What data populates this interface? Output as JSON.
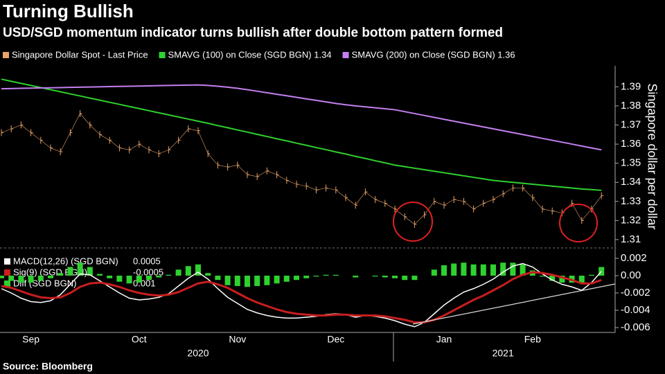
{
  "title": "Turning Bullish",
  "subtitle": "USD/SGD momentum indicator turns bullish after double bottom pattern formed",
  "source": "Source: Bloomberg",
  "chart_data": [
    {
      "type": "line",
      "y_label": "Singapore dollar per dollar",
      "ylim": [
        1.306,
        1.401
      ],
      "yticks": [
        1.31,
        1.32,
        1.33,
        1.34,
        1.35,
        1.36,
        1.37,
        1.38,
        1.39
      ],
      "series": [
        {
          "name": "Singapore Dollar Spot - Last Price",
          "color": "#e8a46a",
          "values": [
            1.366,
            1.368,
            1.37,
            1.366,
            1.362,
            1.358,
            1.356,
            1.366,
            1.376,
            1.37,
            1.365,
            1.362,
            1.358,
            1.357,
            1.36,
            1.357,
            1.355,
            1.357,
            1.362,
            1.368,
            1.367,
            1.355,
            1.349,
            1.348,
            1.349,
            1.344,
            1.343,
            1.346,
            1.344,
            1.341,
            1.339,
            1.338,
            1.336,
            1.337,
            1.336,
            1.332,
            1.328,
            1.335,
            1.331,
            1.329,
            1.326,
            1.322,
            1.318,
            1.323,
            1.33,
            1.328,
            1.331,
            1.33,
            1.326,
            1.329,
            1.331,
            1.334,
            1.337,
            1.337,
            1.332,
            1.326,
            1.325,
            1.324,
            1.329,
            1.32,
            1.326,
            1.333
          ]
        },
        {
          "name": "SMAVG (100)  on Close (SGD BGN) 1.34",
          "color": "#2fd12f",
          "values": [
            1.394,
            1.3929,
            1.3918,
            1.3907,
            1.3896,
            1.3885,
            1.3874,
            1.3863,
            1.3852,
            1.3841,
            1.383,
            1.3819,
            1.3808,
            1.3797,
            1.3786,
            1.3775,
            1.3764,
            1.3753,
            1.3742,
            1.3731,
            1.372,
            1.3709,
            1.3697,
            1.3686,
            1.3674,
            1.3663,
            1.3651,
            1.364,
            1.3628,
            1.3617,
            1.3605,
            1.3594,
            1.3582,
            1.3571,
            1.3559,
            1.3548,
            1.3536,
            1.3525,
            1.3513,
            1.3502,
            1.349,
            1.3482,
            1.3474,
            1.3466,
            1.3458,
            1.345,
            1.3442,
            1.3434,
            1.3426,
            1.3418,
            1.341,
            1.3405,
            1.34,
            1.3395,
            1.339,
            1.3385,
            1.338,
            1.3375,
            1.337,
            1.3365,
            1.3362,
            1.3358
          ]
        },
        {
          "name": "SMAVG (200)  on Close (SGD BGN) 1.36",
          "color": "#c47ff0",
          "values": [
            1.389,
            1.3891,
            1.3892,
            1.3893,
            1.3894,
            1.3895,
            1.3896,
            1.3897,
            1.3898,
            1.3899,
            1.39,
            1.3901,
            1.3902,
            1.3903,
            1.3904,
            1.3905,
            1.3906,
            1.3907,
            1.3908,
            1.3909,
            1.391,
            1.3907,
            1.3903,
            1.3898,
            1.3892,
            1.3885,
            1.3877,
            1.3869,
            1.3861,
            1.3853,
            1.3845,
            1.3837,
            1.3829,
            1.3821,
            1.3813,
            1.3806,
            1.38,
            1.3795,
            1.379,
            1.3785,
            1.378,
            1.377,
            1.376,
            1.375,
            1.374,
            1.373,
            1.372,
            1.371,
            1.37,
            1.369,
            1.368,
            1.367,
            1.366,
            1.365,
            1.364,
            1.363,
            1.362,
            1.361,
            1.36,
            1.359,
            1.358,
            1.357
          ]
        }
      ]
    },
    {
      "type": "macd",
      "ylim": [
        -0.00656,
        0.00304
      ],
      "yticks": [
        0.002,
        {
          "value": 0,
          "label": "0.00"
        },
        -0.002,
        -0.004,
        -0.006
      ],
      "categories": [
        null,
        null,
        null,
        "Sep",
        null,
        null,
        null,
        null,
        null,
        null,
        null,
        null,
        null,
        null,
        "Oct",
        null,
        null,
        null,
        null,
        null,
        null,
        null,
        null,
        null,
        "Nov",
        null,
        null,
        null,
        null,
        null,
        null,
        null,
        null,
        null,
        "Dec",
        null,
        null,
        null,
        null,
        null,
        null,
        null,
        null,
        null,
        null,
        "Jan",
        null,
        null,
        null,
        null,
        null,
        null,
        null,
        null,
        "Feb",
        null,
        null,
        null,
        null,
        null,
        null,
        null
      ],
      "years": [
        null,
        null,
        null,
        null,
        null,
        null,
        null,
        null,
        null,
        null,
        null,
        null,
        null,
        null,
        null,
        null,
        null,
        null,
        null,
        null,
        "2020",
        null,
        null,
        null,
        null,
        null,
        null,
        null,
        null,
        null,
        null,
        null,
        null,
        null,
        null,
        null,
        null,
        null,
        null,
        null,
        null,
        null,
        null,
        null,
        null,
        null,
        null,
        null,
        null,
        null,
        null,
        "2021",
        null,
        null,
        null,
        null,
        null,
        null,
        null,
        null,
        null,
        null
      ],
      "series": [
        {
          "name": "MACD(12,26) (SGD BGN)",
          "last": 0.0005,
          "color": "#ffffff",
          "kind": "line",
          "values": [
            -0.0015,
            -0.002,
            -0.0026,
            -0.003,
            -0.0031,
            -0.0029,
            -0.0022,
            -0.001,
            0.0002,
            0.0001,
            -0.0006,
            -0.0013,
            -0.002,
            -0.0026,
            -0.0028,
            -0.0027,
            -0.0025,
            -0.0021,
            -0.0012,
            -0.0003,
            0.0004,
            -0.0004,
            -0.0015,
            -0.0025,
            -0.0032,
            -0.0039,
            -0.0043,
            -0.0046,
            -0.0048,
            -0.0049,
            -0.0049,
            -0.0048,
            -0.0047,
            -0.0045,
            -0.0044,
            -0.0045,
            -0.0048,
            -0.0046,
            -0.0047,
            -0.0049,
            -0.0052,
            -0.0056,
            -0.0059,
            -0.0054,
            -0.0044,
            -0.0034,
            -0.0026,
            -0.0019,
            -0.0015,
            -0.001,
            -0.0004,
            0.0004,
            0.0011,
            0.0014,
            0.001,
            0.0002,
            -0.0005,
            -0.001,
            -0.0013,
            -0.0017,
            -0.0008,
            0.0005
          ]
        },
        {
          "name": "Sig(9) (SGD BGN)",
          "last": -0.0005,
          "color": "#c81e1e",
          "kind": "line",
          "values": [
            -0.0012,
            -0.0014,
            -0.0018,
            -0.0022,
            -0.0025,
            -0.0026,
            -0.0025,
            -0.002,
            -0.0013,
            -0.0009,
            -0.0008,
            -0.001,
            -0.0013,
            -0.0017,
            -0.002,
            -0.0022,
            -0.0023,
            -0.0022,
            -0.0019,
            -0.0014,
            -0.0009,
            -0.0007,
            -0.001,
            -0.0014,
            -0.002,
            -0.0026,
            -0.0031,
            -0.0035,
            -0.0039,
            -0.0042,
            -0.0044,
            -0.0045,
            -0.0046,
            -0.0046,
            -0.0045,
            -0.0045,
            -0.0046,
            -0.0046,
            -0.0046,
            -0.0047,
            -0.0049,
            -0.0051,
            -0.0054,
            -0.0054,
            -0.0051,
            -0.0046,
            -0.004,
            -0.0034,
            -0.0028,
            -0.0023,
            -0.0017,
            -0.0011,
            -0.0004,
            0.0001,
            0.0004,
            0.0003,
            0.0001,
            -0.0002,
            -0.0005,
            -0.0009,
            -0.0009,
            -0.0005
          ]
        },
        {
          "name": "Diff (SGD BGN)",
          "last": 0.001,
          "color": "#2fd12f",
          "kind": "bar",
          "values": [
            -0.0003,
            -0.0006,
            -0.0008,
            -0.0008,
            -0.0006,
            -0.0003,
            0.0003,
            0.001,
            0.0015,
            0.001,
            0.0002,
            -0.0003,
            -0.0007,
            -0.0009,
            -0.0008,
            -0.0005,
            -0.0002,
            0.0001,
            0.0007,
            0.0011,
            0.0013,
            0.0003,
            -0.0005,
            -0.0011,
            -0.0012,
            -0.0013,
            -0.0012,
            -0.0011,
            -0.0009,
            -0.0007,
            -0.0005,
            -0.0003,
            -0.0001,
            0.0001,
            0.0001,
            0,
            -0.0002,
            0,
            -0.0001,
            -0.0002,
            -0.0003,
            -0.0005,
            -0.0005,
            0,
            0.0007,
            0.0012,
            0.0014,
            0.0015,
            0.0013,
            0.0013,
            0.0013,
            0.0015,
            0.0015,
            0.0013,
            0.0006,
            -0.0001,
            -0.0006,
            -0.0008,
            -0.0008,
            -0.0008,
            0.0001,
            0.001
          ]
        }
      ]
    }
  ]
}
